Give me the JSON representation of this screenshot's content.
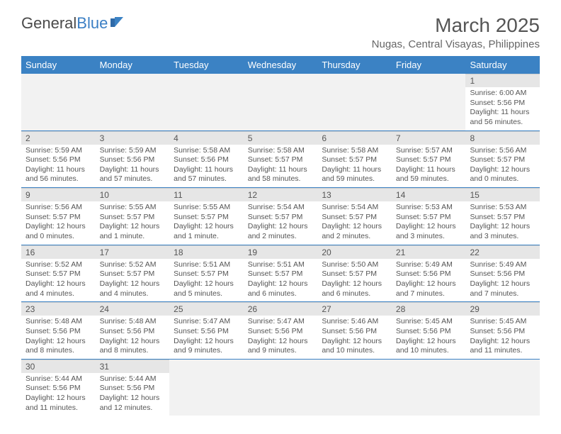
{
  "logo": {
    "text1": "General",
    "text2": "Blue"
  },
  "title": "March 2025",
  "location": "Nugas, Central Visayas, Philippines",
  "day_headers": [
    "Sunday",
    "Monday",
    "Tuesday",
    "Wednesday",
    "Thursday",
    "Friday",
    "Saturday"
  ],
  "colors": {
    "header_bg": "#3b82c4",
    "border": "#3b82c4",
    "daynum_bg": "#e6e6e6",
    "text": "#555555"
  },
  "weeks": [
    [
      null,
      null,
      null,
      null,
      null,
      null,
      {
        "n": "1",
        "sr": "Sunrise: 6:00 AM",
        "ss": "Sunset: 5:56 PM",
        "dl": "Daylight: 11 hours and 56 minutes."
      }
    ],
    [
      {
        "n": "2",
        "sr": "Sunrise: 5:59 AM",
        "ss": "Sunset: 5:56 PM",
        "dl": "Daylight: 11 hours and 56 minutes."
      },
      {
        "n": "3",
        "sr": "Sunrise: 5:59 AM",
        "ss": "Sunset: 5:56 PM",
        "dl": "Daylight: 11 hours and 57 minutes."
      },
      {
        "n": "4",
        "sr": "Sunrise: 5:58 AM",
        "ss": "Sunset: 5:56 PM",
        "dl": "Daylight: 11 hours and 57 minutes."
      },
      {
        "n": "5",
        "sr": "Sunrise: 5:58 AM",
        "ss": "Sunset: 5:57 PM",
        "dl": "Daylight: 11 hours and 58 minutes."
      },
      {
        "n": "6",
        "sr": "Sunrise: 5:58 AM",
        "ss": "Sunset: 5:57 PM",
        "dl": "Daylight: 11 hours and 59 minutes."
      },
      {
        "n": "7",
        "sr": "Sunrise: 5:57 AM",
        "ss": "Sunset: 5:57 PM",
        "dl": "Daylight: 11 hours and 59 minutes."
      },
      {
        "n": "8",
        "sr": "Sunrise: 5:56 AM",
        "ss": "Sunset: 5:57 PM",
        "dl": "Daylight: 12 hours and 0 minutes."
      }
    ],
    [
      {
        "n": "9",
        "sr": "Sunrise: 5:56 AM",
        "ss": "Sunset: 5:57 PM",
        "dl": "Daylight: 12 hours and 0 minutes."
      },
      {
        "n": "10",
        "sr": "Sunrise: 5:55 AM",
        "ss": "Sunset: 5:57 PM",
        "dl": "Daylight: 12 hours and 1 minute."
      },
      {
        "n": "11",
        "sr": "Sunrise: 5:55 AM",
        "ss": "Sunset: 5:57 PM",
        "dl": "Daylight: 12 hours and 1 minute."
      },
      {
        "n": "12",
        "sr": "Sunrise: 5:54 AM",
        "ss": "Sunset: 5:57 PM",
        "dl": "Daylight: 12 hours and 2 minutes."
      },
      {
        "n": "13",
        "sr": "Sunrise: 5:54 AM",
        "ss": "Sunset: 5:57 PM",
        "dl": "Daylight: 12 hours and 2 minutes."
      },
      {
        "n": "14",
        "sr": "Sunrise: 5:53 AM",
        "ss": "Sunset: 5:57 PM",
        "dl": "Daylight: 12 hours and 3 minutes."
      },
      {
        "n": "15",
        "sr": "Sunrise: 5:53 AM",
        "ss": "Sunset: 5:57 PM",
        "dl": "Daylight: 12 hours and 3 minutes."
      }
    ],
    [
      {
        "n": "16",
        "sr": "Sunrise: 5:52 AM",
        "ss": "Sunset: 5:57 PM",
        "dl": "Daylight: 12 hours and 4 minutes."
      },
      {
        "n": "17",
        "sr": "Sunrise: 5:52 AM",
        "ss": "Sunset: 5:57 PM",
        "dl": "Daylight: 12 hours and 4 minutes."
      },
      {
        "n": "18",
        "sr": "Sunrise: 5:51 AM",
        "ss": "Sunset: 5:57 PM",
        "dl": "Daylight: 12 hours and 5 minutes."
      },
      {
        "n": "19",
        "sr": "Sunrise: 5:51 AM",
        "ss": "Sunset: 5:57 PM",
        "dl": "Daylight: 12 hours and 6 minutes."
      },
      {
        "n": "20",
        "sr": "Sunrise: 5:50 AM",
        "ss": "Sunset: 5:57 PM",
        "dl": "Daylight: 12 hours and 6 minutes."
      },
      {
        "n": "21",
        "sr": "Sunrise: 5:49 AM",
        "ss": "Sunset: 5:56 PM",
        "dl": "Daylight: 12 hours and 7 minutes."
      },
      {
        "n": "22",
        "sr": "Sunrise: 5:49 AM",
        "ss": "Sunset: 5:56 PM",
        "dl": "Daylight: 12 hours and 7 minutes."
      }
    ],
    [
      {
        "n": "23",
        "sr": "Sunrise: 5:48 AM",
        "ss": "Sunset: 5:56 PM",
        "dl": "Daylight: 12 hours and 8 minutes."
      },
      {
        "n": "24",
        "sr": "Sunrise: 5:48 AM",
        "ss": "Sunset: 5:56 PM",
        "dl": "Daylight: 12 hours and 8 minutes."
      },
      {
        "n": "25",
        "sr": "Sunrise: 5:47 AM",
        "ss": "Sunset: 5:56 PM",
        "dl": "Daylight: 12 hours and 9 minutes."
      },
      {
        "n": "26",
        "sr": "Sunrise: 5:47 AM",
        "ss": "Sunset: 5:56 PM",
        "dl": "Daylight: 12 hours and 9 minutes."
      },
      {
        "n": "27",
        "sr": "Sunrise: 5:46 AM",
        "ss": "Sunset: 5:56 PM",
        "dl": "Daylight: 12 hours and 10 minutes."
      },
      {
        "n": "28",
        "sr": "Sunrise: 5:45 AM",
        "ss": "Sunset: 5:56 PM",
        "dl": "Daylight: 12 hours and 10 minutes."
      },
      {
        "n": "29",
        "sr": "Sunrise: 5:45 AM",
        "ss": "Sunset: 5:56 PM",
        "dl": "Daylight: 12 hours and 11 minutes."
      }
    ],
    [
      {
        "n": "30",
        "sr": "Sunrise: 5:44 AM",
        "ss": "Sunset: 5:56 PM",
        "dl": "Daylight: 12 hours and 11 minutes."
      },
      {
        "n": "31",
        "sr": "Sunrise: 5:44 AM",
        "ss": "Sunset: 5:56 PM",
        "dl": "Daylight: 12 hours and 12 minutes."
      },
      null,
      null,
      null,
      null,
      null
    ]
  ]
}
